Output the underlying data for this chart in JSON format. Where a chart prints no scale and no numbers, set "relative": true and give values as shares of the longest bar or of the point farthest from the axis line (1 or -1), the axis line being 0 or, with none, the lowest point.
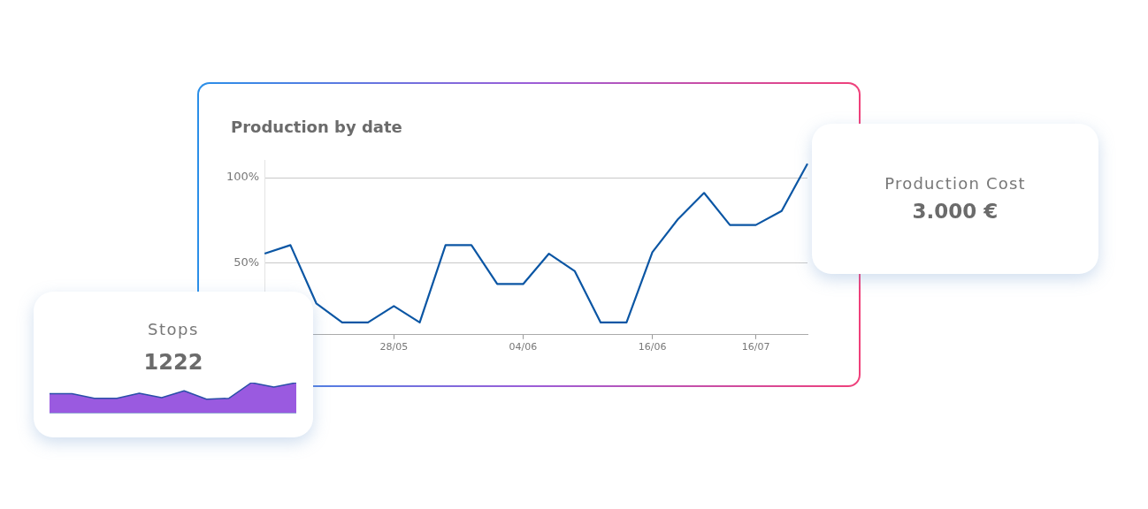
{
  "chart_data": [
    {
      "type": "line",
      "title": "Production by date",
      "categories": [
        null,
        null,
        null,
        null,
        null,
        "28/05",
        null,
        null,
        null,
        null,
        "04/06",
        null,
        null,
        null,
        null,
        "16/06",
        null,
        null,
        null,
        "16/07",
        null,
        null
      ],
      "series": [
        {
          "color": "#0b56a4",
          "values": [
            55.5,
            60.5,
            26.4,
            15.2,
            15.2,
            24.8,
            15.2,
            60.5,
            60.5,
            37.7,
            37.7,
            55.5,
            45.2,
            15.2,
            15.2,
            56.4,
            75.9,
            91.1,
            72.3,
            72.3,
            80.5,
            108.2
          ]
        }
      ],
      "ylim": [
        8,
        110
      ],
      "yticks": [
        {
          "value": 50,
          "label": "50%"
        },
        {
          "value": 100,
          "label": "100%"
        }
      ],
      "grid": "y",
      "marker": "none"
    },
    {
      "type": "area",
      "title": "Stops",
      "annotations": [
        "1222"
      ],
      "relative": true,
      "categories": [
        null,
        null,
        null,
        null,
        null,
        null,
        null,
        null,
        null,
        null,
        null,
        null
      ],
      "series": [
        {
          "color": "#9a5ae0",
          "values": [
            0.63,
            0.63,
            0.48,
            0.48,
            0.65,
            0.5,
            0.73,
            0.45,
            0.48,
            1,
            0.85,
            1
          ]
        }
      ]
    },
    {
      "type": "other",
      "title": "Production Cost",
      "annotations": [
        "3.000 €"
      ]
    }
  ]
}
